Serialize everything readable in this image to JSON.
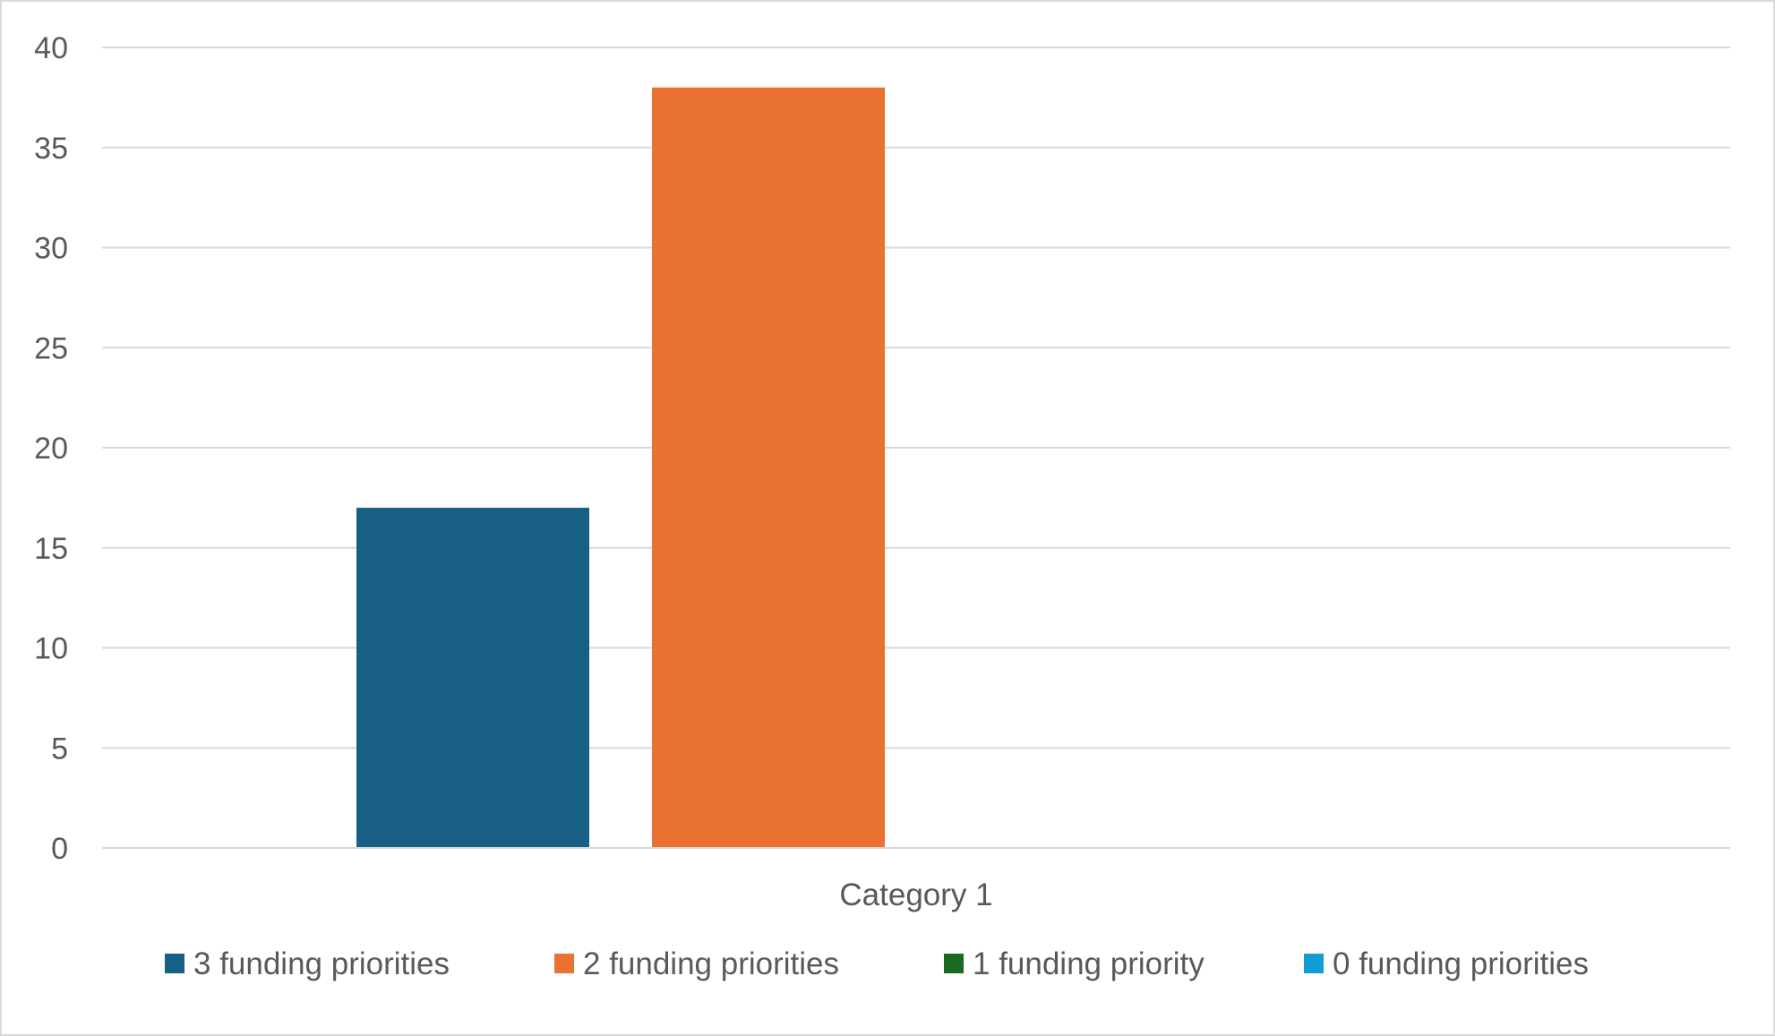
{
  "chart_data": {
    "type": "bar",
    "title": "",
    "xlabel": "",
    "ylabel": "",
    "categories": [
      "Category 1"
    ],
    "series": [
      {
        "name": "3 funding priorities",
        "values": [
          17
        ],
        "color": "#176083"
      },
      {
        "name": "2 funding priorities",
        "values": [
          38
        ],
        "color": "#e97132"
      },
      {
        "name": "1 funding priority",
        "values": [
          0
        ],
        "color": "#196b24"
      },
      {
        "name": "0 funding priorities",
        "values": [
          0
        ],
        "color": "#0f9ed5"
      }
    ],
    "ylim": [
      0,
      40
    ],
    "yticks": [
      0,
      5,
      10,
      15,
      20,
      25,
      30,
      35,
      40
    ],
    "grid": true,
    "legend_position": "bottom"
  },
  "colors": {
    "gridline": "#d9d9d9",
    "text": "#595959",
    "border": "#d9d9d9"
  }
}
